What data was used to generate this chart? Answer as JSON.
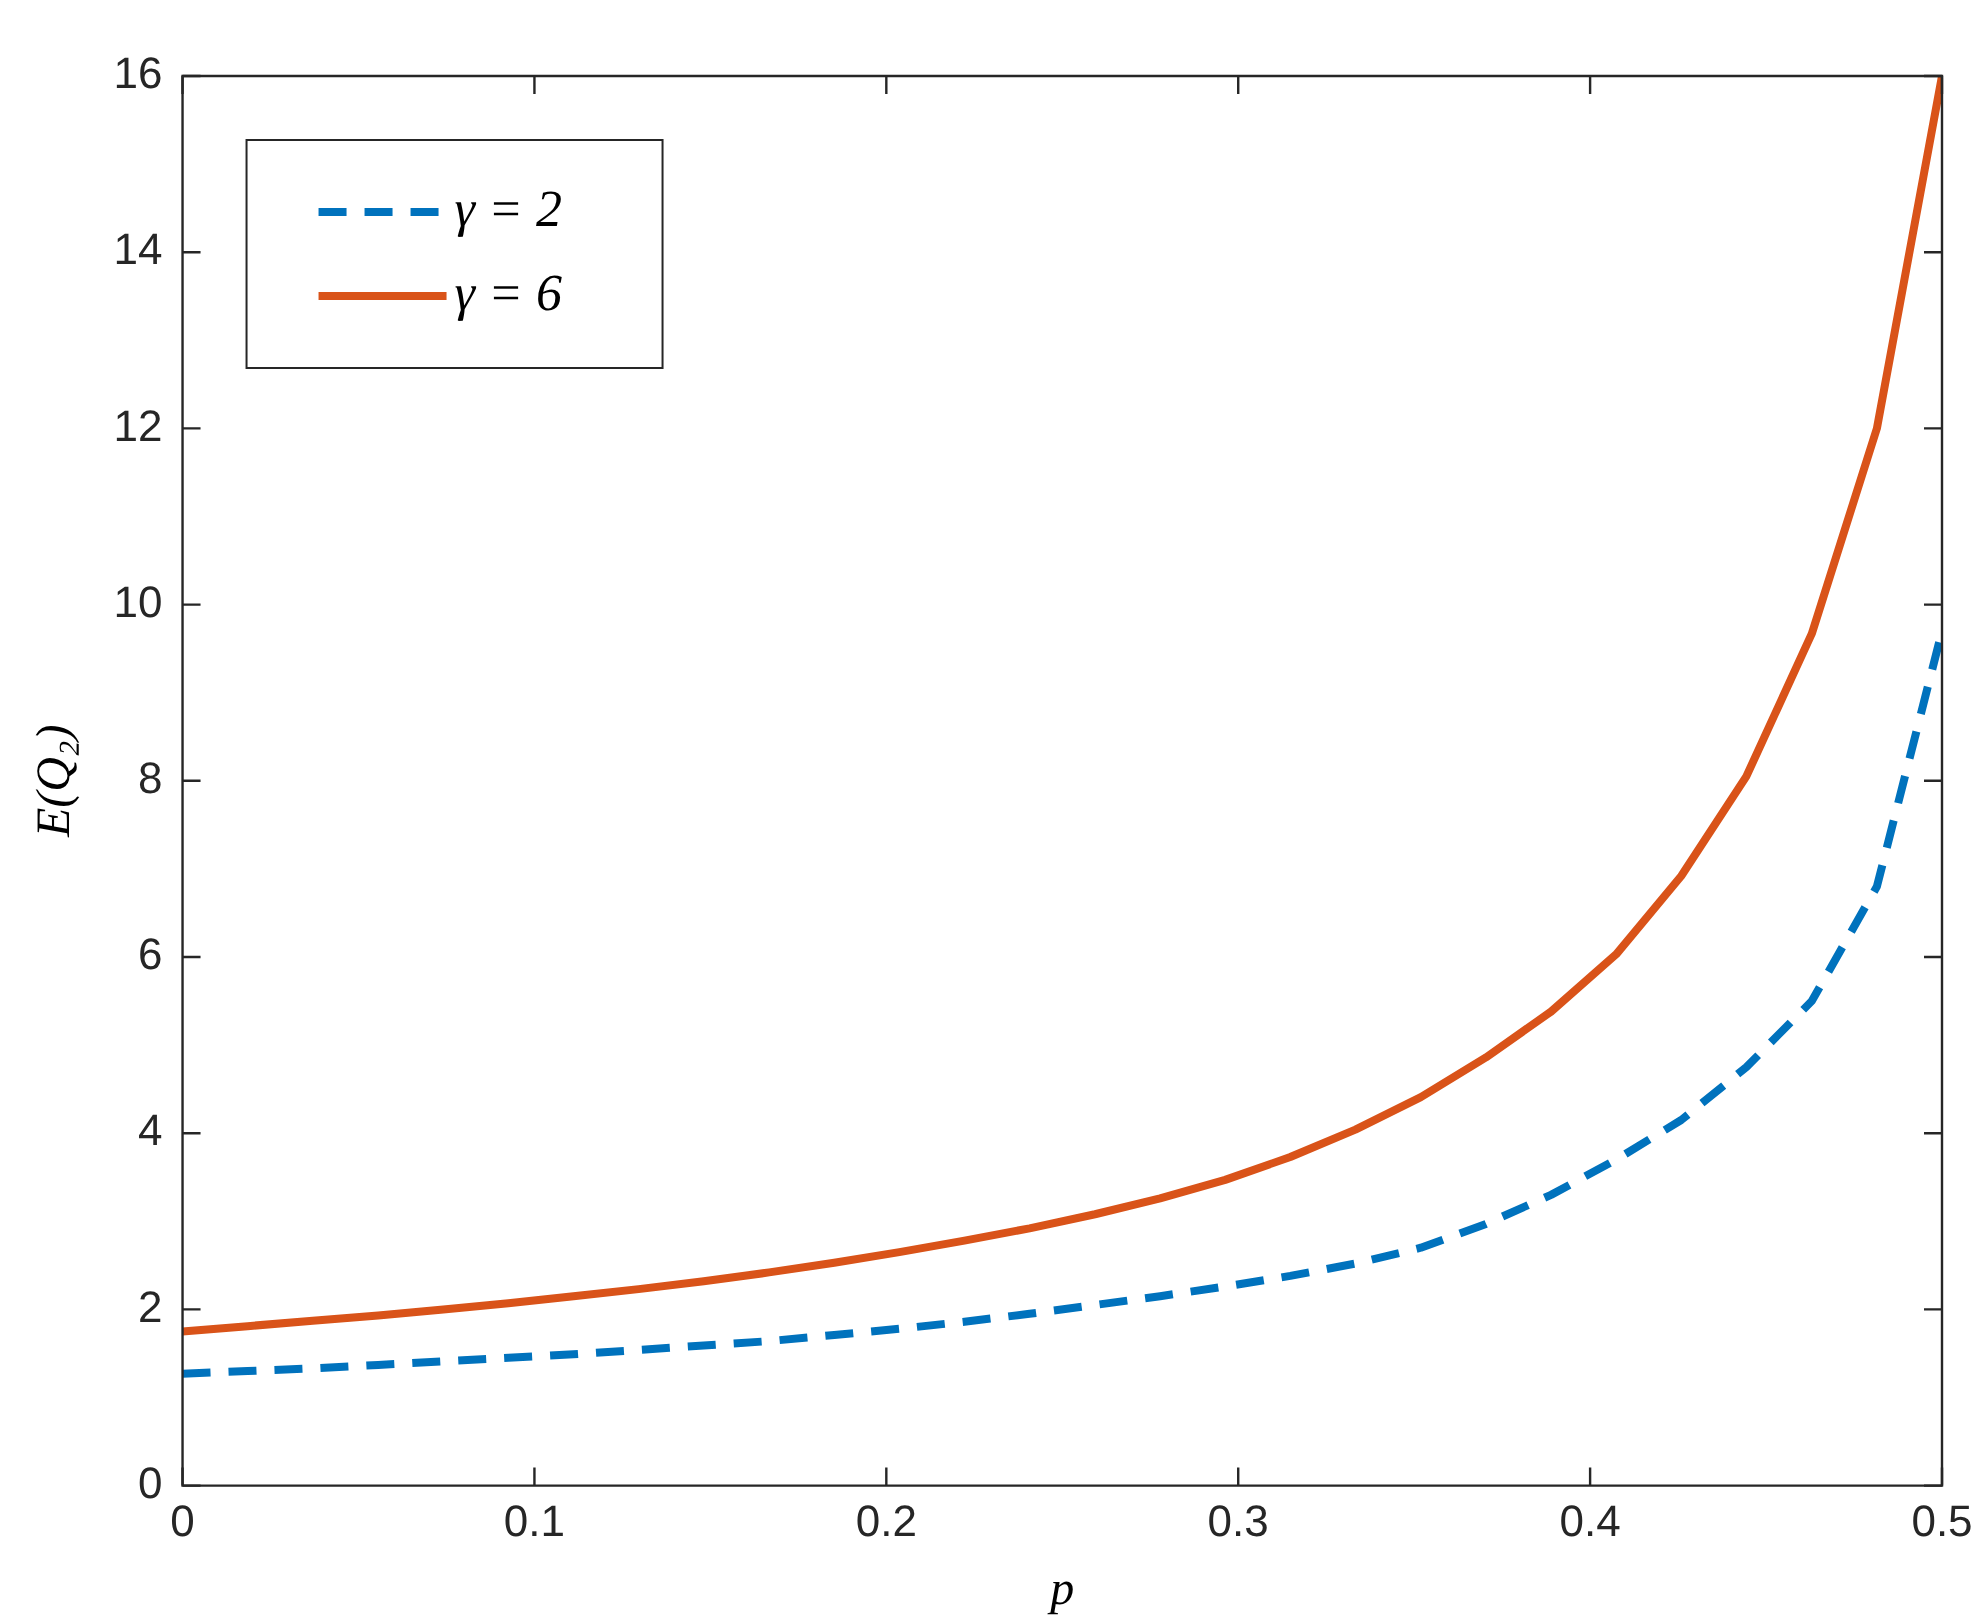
{
  "chart_data": {
    "type": "line",
    "xlabel": "p",
    "ylabel": "E(Q₂)",
    "x": [
      0,
      0.0185,
      0.037,
      0.0556,
      0.0741,
      0.0926,
      0.1111,
      0.1296,
      0.1481,
      0.1667,
      0.1852,
      0.2037,
      0.2222,
      0.2407,
      0.2593,
      0.2778,
      0.2963,
      0.3148,
      0.3333,
      0.3519,
      0.3704,
      0.3889,
      0.4074,
      0.4259,
      0.4444,
      0.463,
      0.4815,
      0.5
    ],
    "series": [
      {
        "name": "γ = 2",
        "color": "#0072bd",
        "line_style": "dashed",
        "values": [
          1.27,
          1.3,
          1.33,
          1.37,
          1.41,
          1.45,
          1.49,
          1.54,
          1.59,
          1.64,
          1.71,
          1.78,
          1.86,
          1.95,
          2.05,
          2.15,
          2.26,
          2.38,
          2.52,
          2.7,
          2.97,
          3.3,
          3.7,
          4.15,
          4.75,
          5.5,
          6.8,
          9.7
        ]
      },
      {
        "name": "γ = 6",
        "color": "#d95319",
        "line_style": "solid",
        "values": [
          1.75,
          1.81,
          1.87,
          1.93,
          2,
          2.07,
          2.15,
          2.23,
          2.32,
          2.42,
          2.53,
          2.65,
          2.78,
          2.92,
          3.08,
          3.26,
          3.47,
          3.73,
          4.04,
          4.41,
          4.86,
          5.38,
          6.03,
          6.92,
          8.05,
          9.67,
          12,
          16
        ]
      }
    ],
    "xlim": [
      0,
      0.5
    ],
    "xticks": [
      0,
      0.1,
      0.2,
      0.3,
      0.4,
      0.5
    ],
    "ylim": [
      0,
      16
    ],
    "yticks": [
      0,
      2,
      4,
      6,
      8,
      10,
      12,
      14,
      16
    ],
    "grid": false,
    "legend": "top left",
    "marker": "none"
  }
}
